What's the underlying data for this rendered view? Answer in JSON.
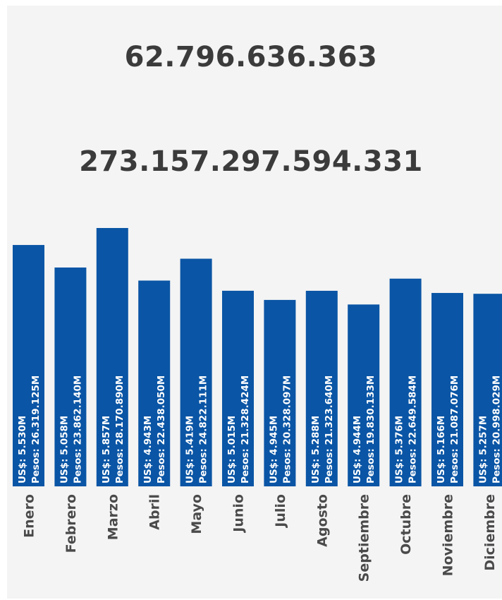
{
  "header": {
    "total_usd": "62.796.636.363",
    "total_pesos": "273.157.297.594.331"
  },
  "colors": {
    "bar": "#0a55a5",
    "panel": "#f4f4f4",
    "text": "#3b3b3b"
  },
  "chart_data": {
    "type": "bar",
    "orientation": "vertical",
    "categories": [
      "Enero",
      "Febrero",
      "Marzo",
      "Abril",
      "Mayo",
      "Junio",
      "Julio",
      "Agosto",
      "Septiembre",
      "Octubre",
      "Noviembre",
      "Diciembre"
    ],
    "values": [
      26319.125,
      23862.14,
      28170.89,
      22438.05,
      24822.111,
      21328.424,
      20328.097,
      21323.64,
      19830.133,
      22649.584,
      21087.076,
      20998.029
    ],
    "data_labels_usd": [
      "US$: 5.530M",
      "US$: 5.058M",
      "US$: 5.857M",
      "US$: 4.943M",
      "US$: 5.419M",
      "US$: 5.015M",
      "US$: 4.945M",
      "US$: 5.288M",
      "US$: 4.944M",
      "US$: 5.376M",
      "US$: 5.166M",
      "US$: 5.257M"
    ],
    "data_labels_pesos": [
      "Pesos: 26.319.125M",
      "Pesos: 23.862.140M",
      "Pesos: 28.170.890M",
      "Pesos: 22.438.050M",
      "Pesos: 24.822.111M",
      "Pesos: 21.328.424M",
      "Pesos: 20.328.097M",
      "Pesos: 21.323.640M",
      "Pesos: 19.830.133M",
      "Pesos: 22.649.584M",
      "Pesos: 21.087.076M",
      "Pesos: 20.998.029M"
    ],
    "ylim": [
      0,
      28170.89
    ],
    "grid": false,
    "legend": "none",
    "xlabel": "",
    "ylabel": ""
  }
}
